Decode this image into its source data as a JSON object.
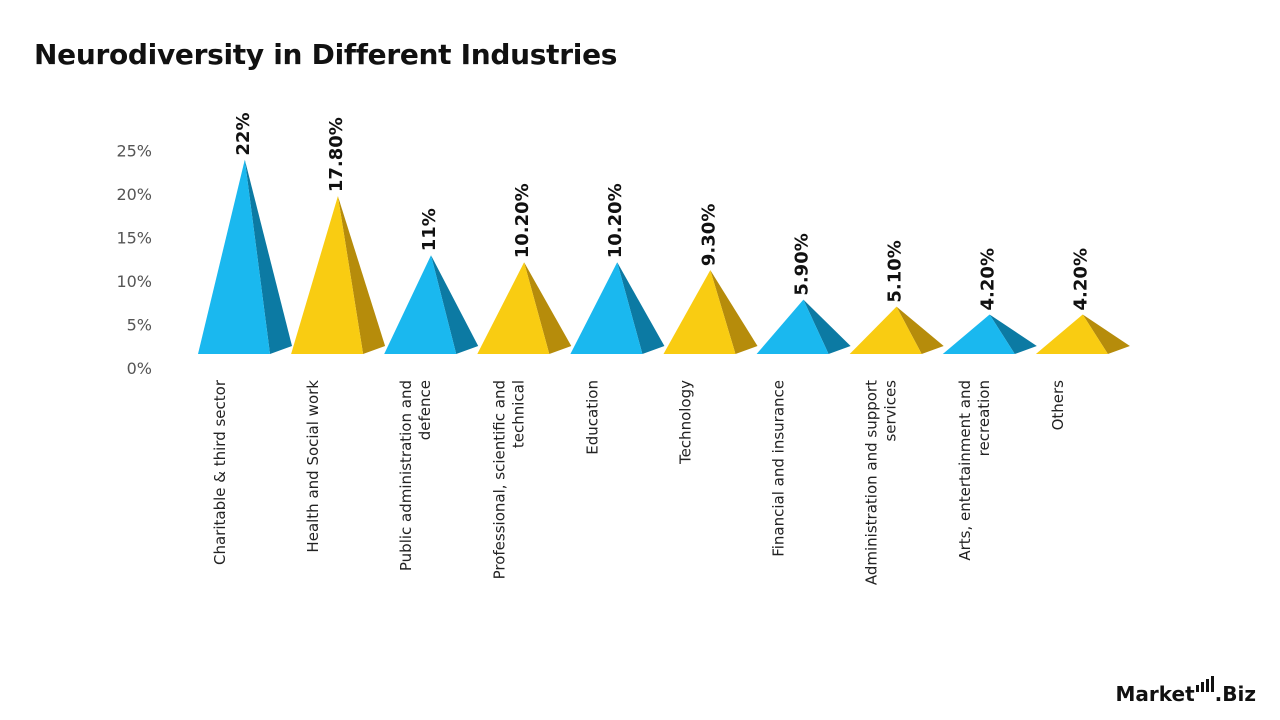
{
  "title": "Neurodiversity in Different Industries",
  "brand": {
    "left": "Market",
    "right": "Biz",
    "icon": "bar-chart-logo-icon"
  },
  "colors": {
    "blue": "#1ab8ef",
    "blue_dark": "#0c7aa3",
    "yellow": "#f9cc12",
    "yellow_dark": "#b68c0b",
    "axis_text": "#555555"
  },
  "chart_data": {
    "type": "bar",
    "shape": "pyramid",
    "title": "Neurodiversity in Different Industries",
    "xlabel": "",
    "ylabel": "",
    "ylim": [
      0,
      25
    ],
    "yticks": [
      0,
      5,
      10,
      15,
      20,
      25
    ],
    "ytick_labels": [
      "0%",
      "5%",
      "10%",
      "15%",
      "20%",
      "25%"
    ],
    "grid": false,
    "legend": "none",
    "categories": [
      "Charitable & third sector",
      "Health and Social work",
      "Public administration and defence",
      "Professional, scientific and technical",
      "Education",
      "Technology",
      "Financial and insurance",
      "Administration and support services",
      "Arts, entertainment and recreation",
      "Others"
    ],
    "category_lines": [
      [
        "Charitable & third sector"
      ],
      [
        "Health and Social work"
      ],
      [
        "Public administration and",
        "defence"
      ],
      [
        "Professional, scientific and",
        "technical"
      ],
      [
        "Education"
      ],
      [
        "Technology"
      ],
      [
        "Financial and insurance"
      ],
      [
        "Administration and support",
        "services"
      ],
      [
        "Arts, entertainment and",
        "recreation"
      ],
      [
        "Others"
      ]
    ],
    "values": [
      22,
      17.8,
      11,
      10.2,
      10.2,
      9.3,
      5.9,
      5.1,
      4.2,
      4.2
    ],
    "data_labels": [
      "22%",
      "17.80%",
      "11%",
      "10.20%",
      "10.20%",
      "9.30%",
      "5.90%",
      "5.10%",
      "4.20%",
      "4.20%"
    ],
    "bar_colors": [
      "blue",
      "yellow",
      "blue",
      "yellow",
      "blue",
      "yellow",
      "blue",
      "yellow",
      "blue",
      "yellow"
    ]
  }
}
